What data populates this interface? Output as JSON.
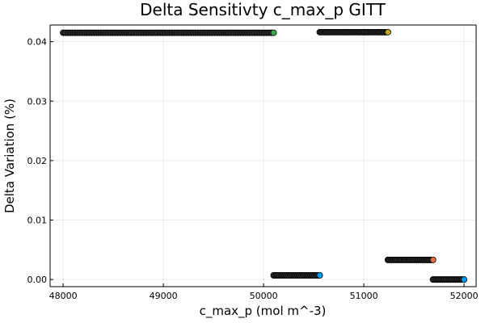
{
  "chart_data": {
    "type": "scatter",
    "title": "Delta Sensitivty c_max_p GITT",
    "xlabel": "c_max_p (mol m^-3)",
    "ylabel": "Delta Variation (%)",
    "xlim": [
      47870,
      52120
    ],
    "ylim": [
      -0.0012,
      0.0428
    ],
    "xticks": [
      48000,
      49000,
      50000,
      51000,
      52000
    ],
    "xtick_labels": [
      "48000",
      "49000",
      "50000",
      "51000",
      "52000"
    ],
    "yticks": [
      0.0,
      0.01,
      0.02,
      0.03,
      0.04
    ],
    "ytick_labels": [
      "0.00",
      "0.01",
      "0.02",
      "0.03",
      "0.04"
    ],
    "grid": true,
    "legend": "none",
    "series": [
      {
        "x_start": 48000,
        "x_end": 50100,
        "y": 0.0415,
        "n_points": 90,
        "fill": "#2a2a2a",
        "end_color": "#3da44d"
      },
      {
        "x_start": 50100,
        "x_end": 50560,
        "y": 0.0007,
        "n_points": 26,
        "fill": "#2a2a2a",
        "end_color": "#009af9"
      },
      {
        "x_start": 50560,
        "x_end": 51240,
        "y": 0.0416,
        "n_points": 36,
        "fill": "#2a2a2a",
        "end_color": "#c8a520"
      },
      {
        "x_start": 51240,
        "x_end": 51690,
        "y": 0.0033,
        "n_points": 26,
        "fill": "#2a2a2a",
        "end_color": "#e26f46"
      },
      {
        "x_start": 51690,
        "x_end": 52000,
        "y": 0.0,
        "n_points": 20,
        "fill": "#2a2a2a",
        "end_color": "#009af9"
      }
    ]
  }
}
